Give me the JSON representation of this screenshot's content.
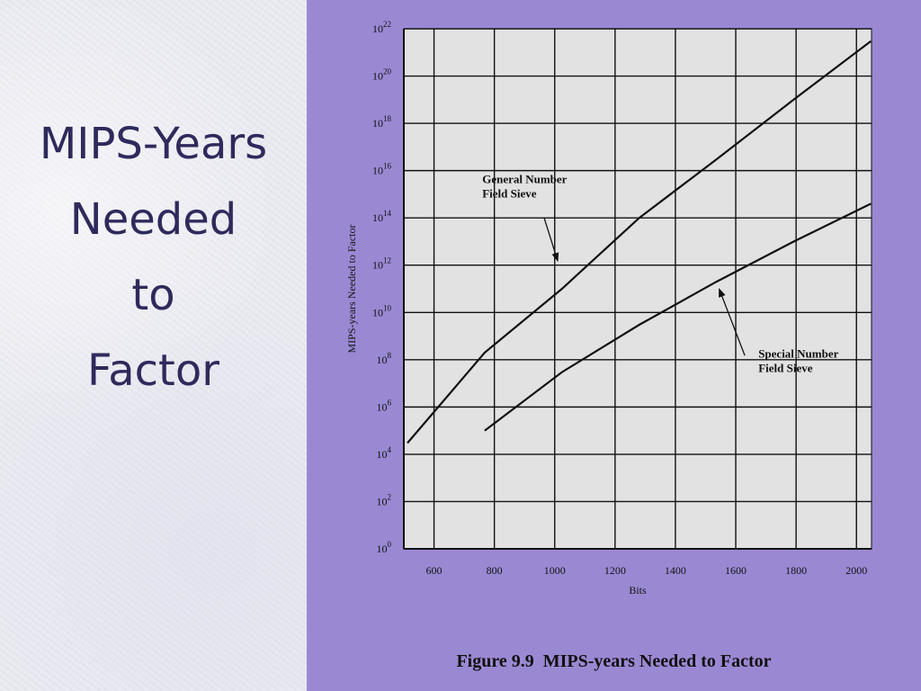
{
  "slide": {
    "title_lines": [
      "MIPS-Years",
      "Needed",
      "to",
      "Factor"
    ]
  },
  "colors": {
    "left_bg": "#ececf3",
    "right_bg": "#9b88d3",
    "plot_bg": "#e2e2e2",
    "title_text": "#2e2a5c",
    "line": "#111111"
  },
  "caption": {
    "figure": "Figure 9.9",
    "text": "MIPS-years Needed to Factor"
  },
  "chart_data": {
    "type": "line",
    "title": "",
    "xlabel": "Bits",
    "ylabel": "MIPS-years Needed to Factor",
    "xlim": [
      500,
      2050
    ],
    "ylim": [
      1,
      1e+22
    ],
    "y_scale": "log",
    "grid": true,
    "x_ticks": [
      {
        "value": 600,
        "label": "600"
      },
      {
        "value": 800,
        "label": "800"
      },
      {
        "value": 1000,
        "label": "1000"
      },
      {
        "value": 1200,
        "label": "1200"
      },
      {
        "value": 1400,
        "label": "1400"
      },
      {
        "value": 1600,
        "label": "1600"
      },
      {
        "value": 1800,
        "label": "1800"
      },
      {
        "value": 2000,
        "label": "2000"
      }
    ],
    "y_ticks": [
      {
        "exp": 0,
        "base": "10",
        "sup": "0"
      },
      {
        "exp": 2,
        "base": "10",
        "sup": "2"
      },
      {
        "exp": 4,
        "base": "10",
        "sup": "4"
      },
      {
        "exp": 6,
        "base": "10",
        "sup": "6"
      },
      {
        "exp": 8,
        "base": "10",
        "sup": "8"
      },
      {
        "exp": 10,
        "base": "10",
        "sup": "10"
      },
      {
        "exp": 12,
        "base": "10",
        "sup": "12"
      },
      {
        "exp": 14,
        "base": "10",
        "sup": "14"
      },
      {
        "exp": 16,
        "base": "10",
        "sup": "16"
      },
      {
        "exp": 18,
        "base": "10",
        "sup": "18"
      },
      {
        "exp": 20,
        "base": "10",
        "sup": "20"
      },
      {
        "exp": 22,
        "base": "10",
        "sup": "22"
      }
    ],
    "series": [
      {
        "name": "General Number Field Sieve",
        "x": [
          512,
          768,
          1024,
          1280,
          1536,
          1792,
          2048
        ],
        "y": [
          30000.0,
          200000000.0,
          100000000000.0,
          100000000000000.0,
          3e+16,
          1e+19,
          3e+21
        ]
      },
      {
        "name": "Special Number Field Sieve",
        "x": [
          768,
          1024,
          1280,
          1536,
          1792,
          2048
        ],
        "y": [
          100000.0,
          30000000.0,
          3000000000.0,
          200000000000.0,
          10000000000000.0,
          400000000000000.0
        ]
      }
    ],
    "annotations": [
      {
        "series": 0,
        "lines": [
          "General Number",
          "Field Sieve"
        ],
        "arrow_to": {
          "x": 1010,
          "y": 1500000000000.0
        },
        "arrow_from": {
          "x": 965,
          "y": 100000000000000.0
        }
      },
      {
        "series": 1,
        "lines": [
          "Special Number",
          "Field Sieve"
        ],
        "arrow_to": {
          "x": 1545,
          "y": 100000000000.0
        },
        "arrow_from": {
          "x": 1630,
          "y": 150000000.0
        }
      }
    ]
  }
}
